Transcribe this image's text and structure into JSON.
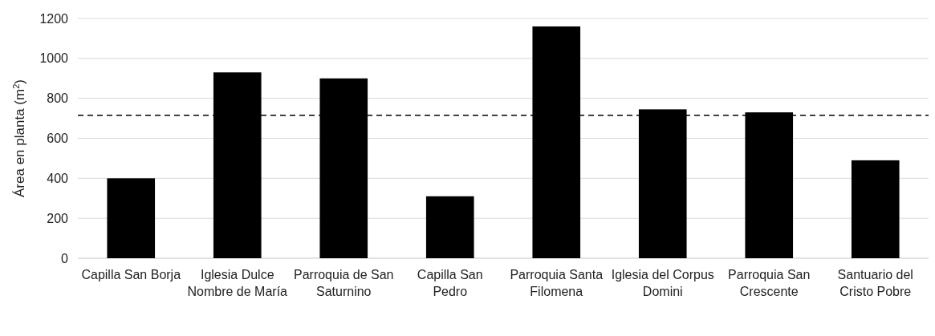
{
  "chart_data": {
    "type": "bar",
    "ylabel": "Área en planta (m$^{2}$)",
    "categories": [
      "Capilla San Borja",
      "Iglesia Dulce Nombre de María",
      "Parroquia de San Saturnino",
      "Capilla San Pedro",
      "Parroquia Santa Filomena",
      "Iglesia del Corpus Domini",
      "Parroquia San Crescente",
      "Santuario del Cristo Pobre"
    ],
    "values": [
      400,
      930,
      900,
      310,
      1160,
      745,
      730,
      490
    ],
    "color": "#000000",
    "ylim": [
      0,
      1200
    ],
    "yticks": [
      0,
      200,
      400,
      600,
      800,
      1000,
      1200
    ],
    "grid": "y",
    "ref_lines": [
      {
        "axis": "y",
        "value": 715,
        "color": "#000000",
        "line_style": "dashed"
      }
    ]
  }
}
